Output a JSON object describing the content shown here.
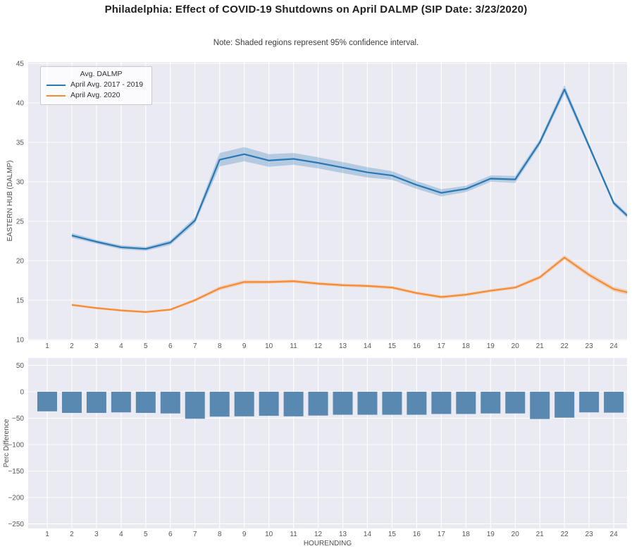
{
  "figure": {
    "title": "Philadelphia: Effect of COVID-19 Shutdowns on April DALMP (SIP Date: 3/23/2020)",
    "note": "Note: Shaded regions represent 95% confidence interval.",
    "background": "#ffffff",
    "plot_background": "#eaeaf2",
    "grid_color": "#ffffff",
    "tick_color": "#555555",
    "label_color": "#4d4d4d"
  },
  "legend": {
    "title": "Avg. DALMP",
    "entries": [
      {
        "label": "April Avg. 2017 - 2019",
        "color": "#2878b5"
      },
      {
        "label": "April Avg. 2020",
        "color": "#f78b31"
      }
    ]
  },
  "chart_data": [
    {
      "type": "line",
      "title": "",
      "xlabel": "",
      "ylabel": "EASTERN HUB (DALMP)",
      "grid": true,
      "legend_position": "upper left",
      "ylim": [
        10,
        45.2
      ],
      "xlim": [
        0.25,
        24.55
      ],
      "xticks": [
        1,
        2,
        3,
        4,
        5,
        6,
        7,
        8,
        9,
        10,
        11,
        12,
        13,
        14,
        15,
        16,
        17,
        18,
        19,
        20,
        21,
        22,
        23,
        24
      ],
      "yticks": [
        10,
        15,
        20,
        25,
        30,
        35,
        40,
        45
      ],
      "x": [
        2,
        3,
        4,
        5,
        6,
        7,
        8,
        9,
        10,
        11,
        12,
        13,
        14,
        15,
        16,
        17,
        18,
        19,
        20,
        21,
        22,
        23,
        24,
        24.55
      ],
      "series": [
        {
          "name": "April Avg. 2017 - 2019",
          "color": "#2878b5",
          "values": [
            23.2,
            22.4,
            21.7,
            21.5,
            22.3,
            25.1,
            32.8,
            33.5,
            32.7,
            32.9,
            32.4,
            31.8,
            31.2,
            30.8,
            29.6,
            28.6,
            29.1,
            30.4,
            30.3,
            35.0,
            41.7,
            34.5,
            27.3,
            25.7
          ],
          "ci": [
            0.3,
            0.25,
            0.25,
            0.25,
            0.3,
            0.4,
            0.85,
            0.9,
            0.8,
            0.75,
            0.7,
            0.7,
            0.65,
            0.55,
            0.5,
            0.45,
            0.4,
            0.4,
            0.45,
            0.4,
            0.55,
            0.35,
            0.3,
            0.3
          ]
        },
        {
          "name": "April Avg. 2020",
          "color": "#f78b31",
          "values": [
            14.4,
            14.0,
            13.7,
            13.5,
            13.8,
            15.0,
            16.5,
            17.3,
            17.3,
            17.4,
            17.1,
            16.9,
            16.8,
            16.6,
            15.9,
            15.4,
            15.7,
            16.2,
            16.6,
            17.9,
            20.4,
            18.2,
            16.4,
            16.0
          ],
          "ci": [
            0.15,
            0.15,
            0.15,
            0.15,
            0.15,
            0.2,
            0.25,
            0.25,
            0.2,
            0.2,
            0.2,
            0.2,
            0.2,
            0.2,
            0.2,
            0.2,
            0.2,
            0.2,
            0.2,
            0.25,
            0.3,
            0.3,
            0.3,
            0.3
          ]
        }
      ]
    },
    {
      "type": "bar",
      "title": "",
      "xlabel": "HOURENDING",
      "ylabel": "Perc Difference",
      "grid": true,
      "bar_color": "#5988b0",
      "ylim": [
        -259,
        64
      ],
      "yticks": [
        50,
        0,
        -50,
        -100,
        -150,
        -200,
        -250
      ],
      "categories": [
        1,
        2,
        3,
        4,
        5,
        6,
        7,
        8,
        9,
        10,
        11,
        12,
        13,
        14,
        15,
        16,
        17,
        18,
        19,
        20,
        21,
        22,
        23,
        24
      ],
      "values": [
        -37,
        -40,
        -40,
        -39,
        -40,
        -41,
        -51,
        -47,
        -46.5,
        -45.5,
        -46.5,
        -45,
        -43.5,
        -43.5,
        -43.5,
        -43.5,
        -42,
        -42,
        -41,
        -41,
        -51.5,
        -49,
        -39,
        -39.5
      ]
    }
  ]
}
